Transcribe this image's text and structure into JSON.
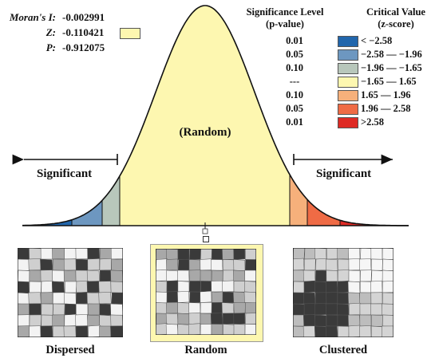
{
  "stats": {
    "morans_i_label": "Moran's I:",
    "morans_i_value": "-0.002991",
    "z_label": "Z:",
    "z_value": "-0.110421",
    "p_label": "P:",
    "p_value": "-0.912075",
    "z_swatch_color": "#fdf7b0"
  },
  "legend": {
    "sig_header_line1": "Significance Level",
    "sig_header_line2": "(p-value)",
    "crit_header_line1": "Critical Value",
    "crit_header_line2": "(z-score)",
    "rows": [
      {
        "p": "0.01",
        "z": "< −2.58",
        "color": "#2166ac"
      },
      {
        "p": "0.05",
        "z": "−2.58 — −1.96",
        "color": "#6d97c0"
      },
      {
        "p": "0.10",
        "z": "−1.96 — −1.65",
        "color": "#b8c7bb"
      },
      {
        "p": "---",
        "z": "−1.65 — 1.65",
        "color": "#fdf7b0"
      },
      {
        "p": "0.10",
        "z": "1.65 — 1.96",
        "color": "#f6b07b"
      },
      {
        "p": "0.05",
        "z": "1.96 — 2.58",
        "color": "#ef6b45"
      },
      {
        "p": "0.01",
        "z": ">2.58",
        "color": "#de2a24"
      }
    ]
  },
  "curve": {
    "center_label": "(Random)",
    "left_label": "Significant",
    "right_label": "Significant"
  },
  "maps": {
    "dispersed_caption": "Dispersed",
    "random_caption": "Random",
    "clustered_caption": "Clustered"
  }
}
